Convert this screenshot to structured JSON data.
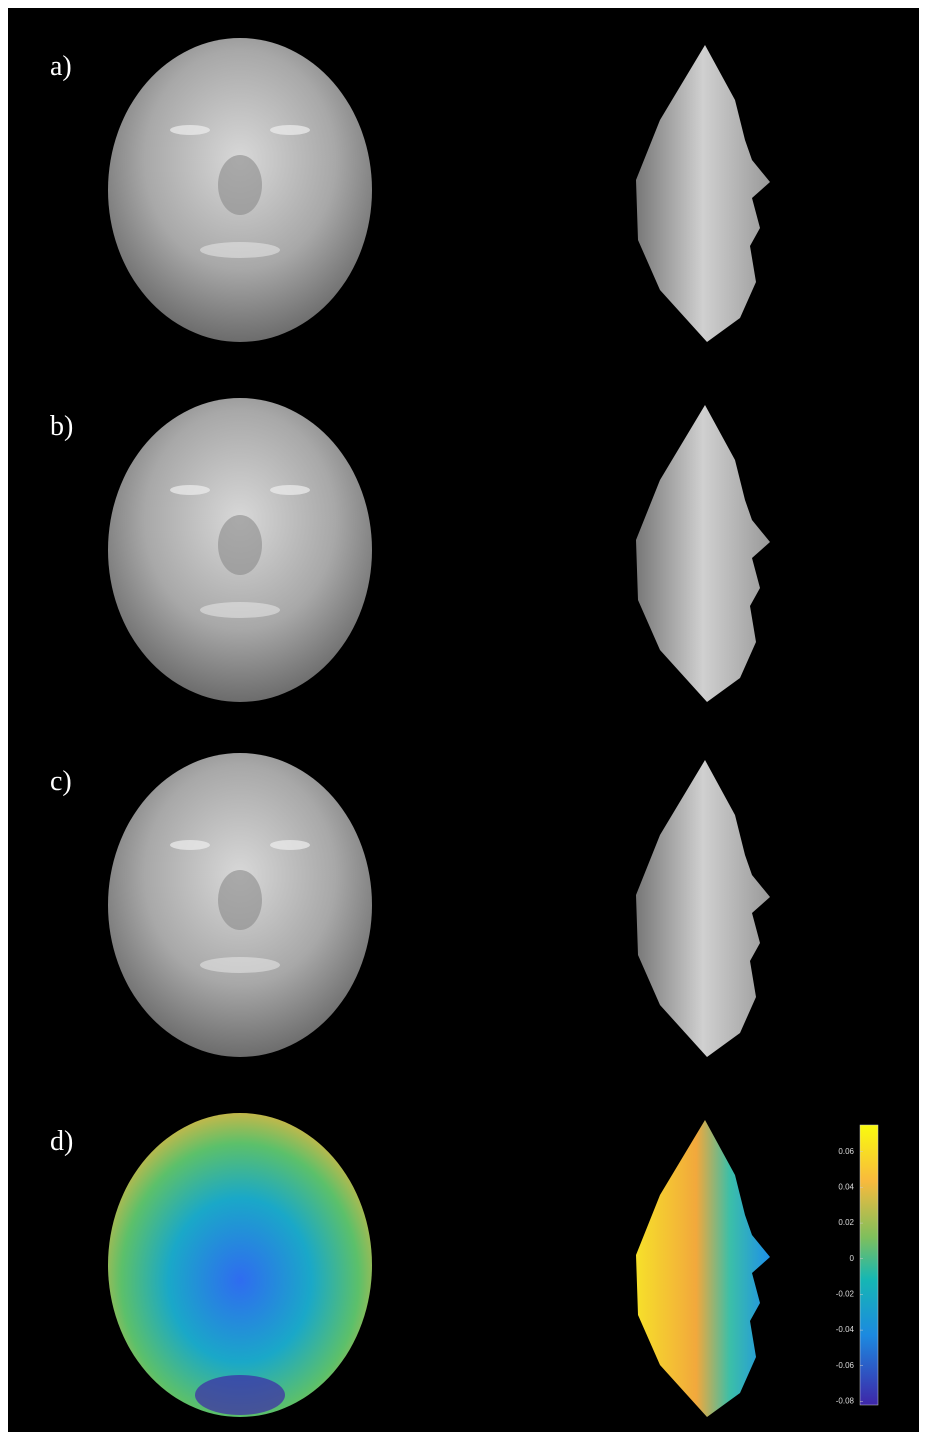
{
  "panels": [
    {
      "label": "a)"
    },
    {
      "label": "b)"
    },
    {
      "label": "c)"
    },
    {
      "label": "d)"
    }
  ],
  "colorbar": {
    "ylim": [
      -0.082,
      0.075
    ],
    "yticks": [
      0.06,
      0.04,
      0.02,
      0,
      -0.02,
      -0.04,
      -0.06,
      -0.08
    ]
  }
}
